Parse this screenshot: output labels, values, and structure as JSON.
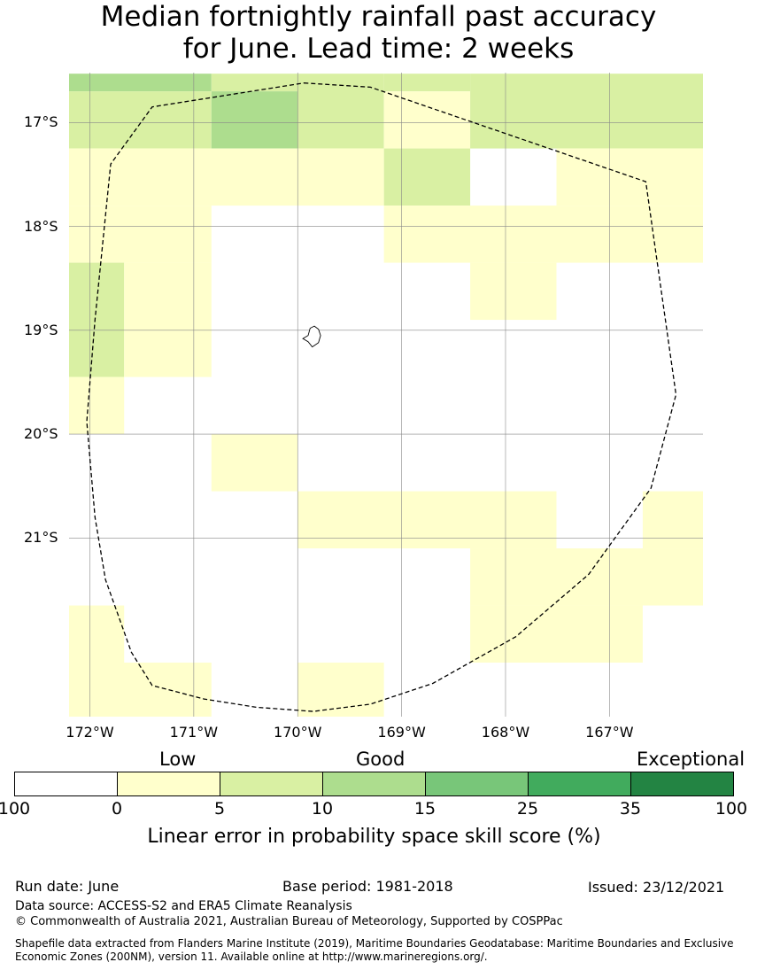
{
  "title": {
    "line1": "Median fortnightly rainfall past accuracy",
    "line2": "for June. Lead time: 2 weeks"
  },
  "map": {
    "lon_min": -172.2,
    "lon_max": -166.1,
    "lat_max": -16.52,
    "lat_min": -22.72,
    "lat_ticks": [
      {
        "value": -17,
        "label": "17°S"
      },
      {
        "value": -18,
        "label": "18°S"
      },
      {
        "value": -19,
        "label": "19°S"
      },
      {
        "value": -20,
        "label": "20°S"
      },
      {
        "value": -21,
        "label": "21°S"
      }
    ],
    "lon_ticks": [
      {
        "value": -172,
        "label": "172°W"
      },
      {
        "value": -171,
        "label": "171°W"
      },
      {
        "value": -170,
        "label": "170°W"
      },
      {
        "value": -169,
        "label": "169°W"
      },
      {
        "value": -168,
        "label": "168°W"
      },
      {
        "value": -167,
        "label": "167°W"
      }
    ],
    "cells": [
      {
        "lon": [
          -172.2,
          -170.83
        ],
        "lat": [
          -16.53,
          -16.7
        ],
        "cat": 2
      },
      {
        "lon": [
          -172.2,
          -170.83
        ],
        "lat": [
          -16.7,
          -17.25
        ],
        "cat": 1
      },
      {
        "lon": [
          -170.83,
          -170.0
        ],
        "lat": [
          -16.53,
          -16.7
        ],
        "cat": 1
      },
      {
        "lon": [
          -170.83,
          -170.0
        ],
        "lat": [
          -16.7,
          -17.25
        ],
        "cat": 2
      },
      {
        "lon": [
          -170.0,
          -169.17
        ],
        "lat": [
          -16.53,
          -17.25
        ],
        "cat": 1
      },
      {
        "lon": [
          -169.17,
          -168.34
        ],
        "lat": [
          -16.53,
          -16.7
        ],
        "cat": 1
      },
      {
        "lon": [
          -169.17,
          -168.34
        ],
        "lat": [
          -16.7,
          -17.25
        ],
        "cat": 0
      },
      {
        "lon": [
          -168.34,
          -166.1
        ],
        "lat": [
          -16.53,
          -17.25
        ],
        "cat": 1
      },
      {
        "lon": [
          -172.2,
          -169.17
        ],
        "lat": [
          -17.25,
          -17.8
        ],
        "cat": 0
      },
      {
        "lon": [
          -169.17,
          -168.34
        ],
        "lat": [
          -17.25,
          -17.8
        ],
        "cat": 1
      },
      {
        "lon": [
          -167.51,
          -166.1
        ],
        "lat": [
          -17.25,
          -17.8
        ],
        "cat": 0
      },
      {
        "lon": [
          -172.2,
          -170.83
        ],
        "lat": [
          -17.8,
          -18.35
        ],
        "cat": 0
      },
      {
        "lon": [
          -169.17,
          -166.1
        ],
        "lat": [
          -17.8,
          -18.35
        ],
        "cat": 0
      },
      {
        "lon": [
          -168.34,
          -167.51
        ],
        "lat": [
          -18.35,
          -18.9
        ],
        "cat": 0
      },
      {
        "lon": [
          -172.2,
          -171.67
        ],
        "lat": [
          -18.35,
          -19.45
        ],
        "cat": 1
      },
      {
        "lon": [
          -171.67,
          -170.83
        ],
        "lat": [
          -18.35,
          -19.45
        ],
        "cat": 0
      },
      {
        "lon": [
          -172.2,
          -171.67
        ],
        "lat": [
          -19.45,
          -20.0
        ],
        "cat": 0
      },
      {
        "lon": [
          -170.83,
          -170.0
        ],
        "lat": [
          -20.0,
          -20.55
        ],
        "cat": 0
      },
      {
        "lon": [
          -170.0,
          -167.51
        ],
        "lat": [
          -20.55,
          -21.1
        ],
        "cat": 0
      },
      {
        "lon": [
          -166.68,
          -166.1
        ],
        "lat": [
          -20.55,
          -21.1
        ],
        "cat": 0
      },
      {
        "lon": [
          -168.34,
          -166.1
        ],
        "lat": [
          -21.1,
          -21.65
        ],
        "cat": 0
      },
      {
        "lon": [
          -168.34,
          -166.68
        ],
        "lat": [
          -21.65,
          -22.2
        ],
        "cat": 0
      },
      {
        "lon": [
          -172.2,
          -171.67
        ],
        "lat": [
          -21.65,
          -22.2
        ],
        "cat": 0
      },
      {
        "lon": [
          -172.2,
          -170.83
        ],
        "lat": [
          -22.2,
          -22.72
        ],
        "cat": 0
      },
      {
        "lon": [
          -170.0,
          -169.17
        ],
        "lat": [
          -22.2,
          -22.72
        ],
        "cat": 0
      }
    ],
    "eez_boundary": [
      [
        -169.94,
        -16.62
      ],
      [
        -169.3,
        -16.66
      ],
      [
        -166.65,
        -17.57
      ],
      [
        -166.36,
        -19.62
      ],
      [
        -166.6,
        -20.52
      ],
      [
        -167.2,
        -21.35
      ],
      [
        -167.9,
        -21.95
      ],
      [
        -168.7,
        -22.4
      ],
      [
        -169.3,
        -22.6
      ],
      [
        -169.85,
        -22.67
      ],
      [
        -170.4,
        -22.63
      ],
      [
        -170.9,
        -22.55
      ],
      [
        -171.4,
        -22.42
      ],
      [
        -171.6,
        -22.1
      ],
      [
        -171.85,
        -21.4
      ],
      [
        -171.95,
        -20.8
      ],
      [
        -172.03,
        -19.88
      ],
      [
        -171.95,
        -18.9
      ],
      [
        -171.8,
        -17.4
      ],
      [
        -171.4,
        -16.85
      ],
      [
        -169.94,
        -16.62
      ]
    ],
    "island": [
      [
        -169.84,
        -18.96
      ],
      [
        -169.8,
        -18.99
      ],
      [
        -169.78,
        -19.05
      ],
      [
        -169.8,
        -19.12
      ],
      [
        -169.86,
        -19.16
      ],
      [
        -169.9,
        -19.11
      ],
      [
        -169.95,
        -19.08
      ],
      [
        -169.9,
        -19.05
      ],
      [
        -169.88,
        -18.98
      ],
      [
        -169.84,
        -18.96
      ]
    ]
  },
  "legend": {
    "categories": [
      "Low",
      "Good",
      "Exceptional"
    ],
    "colors": [
      "#ffffff",
      "#ffffcc",
      "#d9f0a3",
      "#addd8e",
      "#78c679",
      "#41ab5d",
      "#238443"
    ],
    "ticks": [
      "100",
      "0",
      "5",
      "10",
      "15",
      "25",
      "35",
      "100"
    ],
    "label": "Linear error in probability space skill score (%)"
  },
  "footer": {
    "run_date": "Run date: June",
    "base_period": "Base period: 1981-2018",
    "issued": "Issued: 23/12/2021",
    "data_source": "Data source: ACCESS-S2 and ERA5 Climate Reanalysis",
    "copyright": "© Commonwealth of Australia 2021, Australian Bureau of Meteorology, Supported by COSPPac",
    "shapefile": "Shapefile data extracted from Flanders Marine Institute (2019), Maritime Boundaries Geodatabase: Maritime Boundaries and Exclusive Economic Zones (200NM), version 11. Available online at http://www.marineregions.org/."
  }
}
